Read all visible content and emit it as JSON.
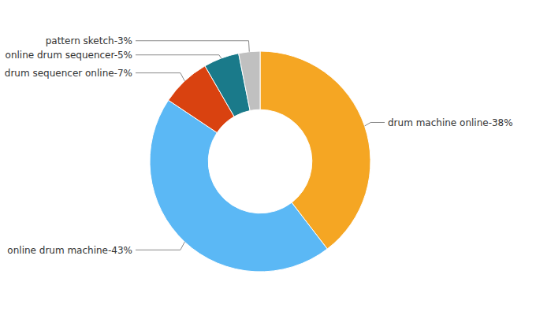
{
  "chart_data": {
    "type": "donut",
    "values": [
      38,
      43,
      7,
      5,
      3
    ],
    "value_labels": [
      "drum machine online-38%",
      "online drum machine-43%",
      "drum sequencer online-7%",
      "online drum sequencer-5%",
      "pattern sketch-3%"
    ],
    "colors": [
      "#f5a623",
      "#5bb8f5",
      "#d94210",
      "#1a7a8a",
      "#c0c0c0"
    ],
    "data_labels": true
  }
}
